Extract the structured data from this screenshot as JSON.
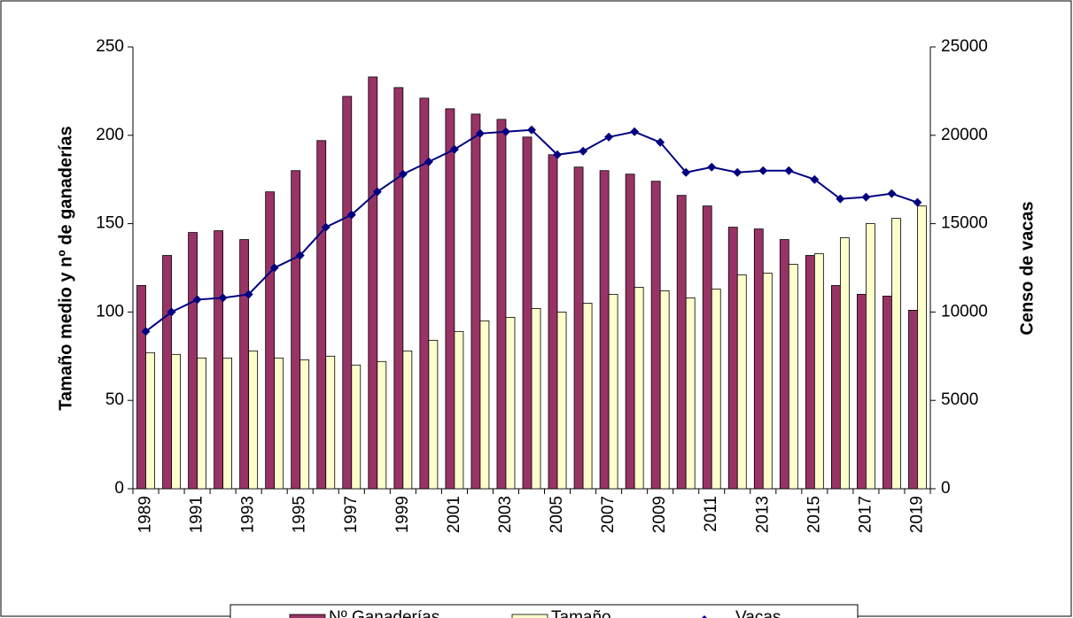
{
  "chart_data": {
    "type": "bar_line",
    "y_label": "Tamaño medio y nº de ganaderías",
    "y2_label": "Censo de vacas",
    "categories": [
      "1989",
      null,
      "1991",
      null,
      "1993",
      null,
      "1995",
      null,
      "1997",
      null,
      "1999",
      null,
      "2001",
      null,
      "2003",
      null,
      "2005",
      null,
      "2007",
      null,
      "2009",
      null,
      "2011",
      null,
      "2013",
      null,
      "2015",
      null,
      "2017",
      null,
      "2019"
    ],
    "series": [
      {
        "name": "Nº Ganaderías",
        "type": "bar",
        "color": "#993366",
        "values": [
          115,
          132,
          145,
          146,
          141,
          168,
          180,
          197,
          222,
          233,
          227,
          221,
          215,
          212,
          209,
          199,
          189,
          182,
          180,
          178,
          174,
          166,
          160,
          148,
          147,
          141,
          132,
          115,
          110,
          109,
          101
        ]
      },
      {
        "name": "Tamaño",
        "type": "bar",
        "color": "#ffffcc",
        "values": [
          77,
          76,
          74,
          74,
          78,
          74,
          73,
          75,
          70,
          72,
          78,
          84,
          89,
          95,
          97,
          102,
          100,
          105,
          110,
          114,
          112,
          108,
          113,
          121,
          122,
          127,
          133,
          142,
          150,
          153,
          160
        ]
      },
      {
        "name": "Vacas",
        "type": "line",
        "axis": "y2",
        "color": "#000080",
        "values": [
          8900,
          10000,
          10700,
          10800,
          11000,
          12500,
          13200,
          14800,
          15500,
          16800,
          17800,
          18500,
          19200,
          20100,
          20200,
          20300,
          18900,
          19100,
          19900,
          20200,
          19600,
          17900,
          18200,
          17900,
          18000,
          18000,
          17500,
          16400,
          16500,
          16700,
          16200
        ]
      }
    ],
    "ylim": [
      0,
      250
    ],
    "yticks": [
      0,
      50,
      100,
      150,
      200,
      250
    ],
    "y2lim": [
      0,
      25000
    ],
    "y2ticks": [
      0,
      5000,
      10000,
      15000,
      20000,
      25000
    ],
    "grid": false,
    "legend": "bottom"
  }
}
